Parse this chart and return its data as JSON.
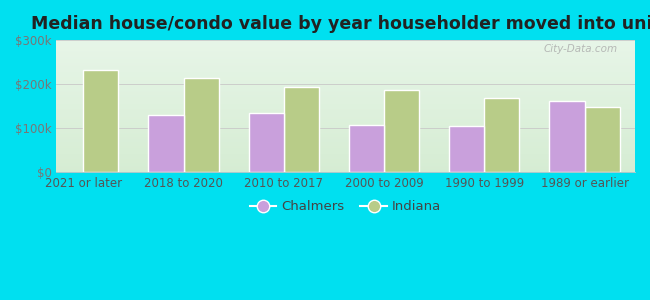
{
  "title": "Median house/condo value by year householder moved into unit",
  "categories": [
    "2021 or later",
    "2018 to 2020",
    "2010 to 2017",
    "2000 to 2009",
    "1990 to 1999",
    "1989 or earlier"
  ],
  "chalmers": [
    null,
    130000,
    135000,
    107000,
    106000,
    162000
  ],
  "indiana": [
    232000,
    215000,
    193000,
    186000,
    168000,
    148000
  ],
  "chalmers_color": "#c9a0dc",
  "indiana_color": "#b8cc88",
  "background_outer": "#00e0f0",
  "background_inner": "#dff0e0",
  "ylim": [
    0,
    300000
  ],
  "yticks": [
    0,
    100000,
    200000,
    300000
  ],
  "ytick_labels": [
    "$0",
    "$100k",
    "$200k",
    "$300k"
  ],
  "ylabel_color": "#777777",
  "grid_color": "#c8c8c8",
  "watermark": "City-Data.com",
  "legend_chalmers": "Chalmers",
  "legend_indiana": "Indiana",
  "title_fontsize": 12.5,
  "bar_width": 0.35,
  "tick_fontsize": 8.5,
  "legend_fontsize": 9.5,
  "bar_edge_color": "#ffffff",
  "bar_edge_width": 1.0
}
